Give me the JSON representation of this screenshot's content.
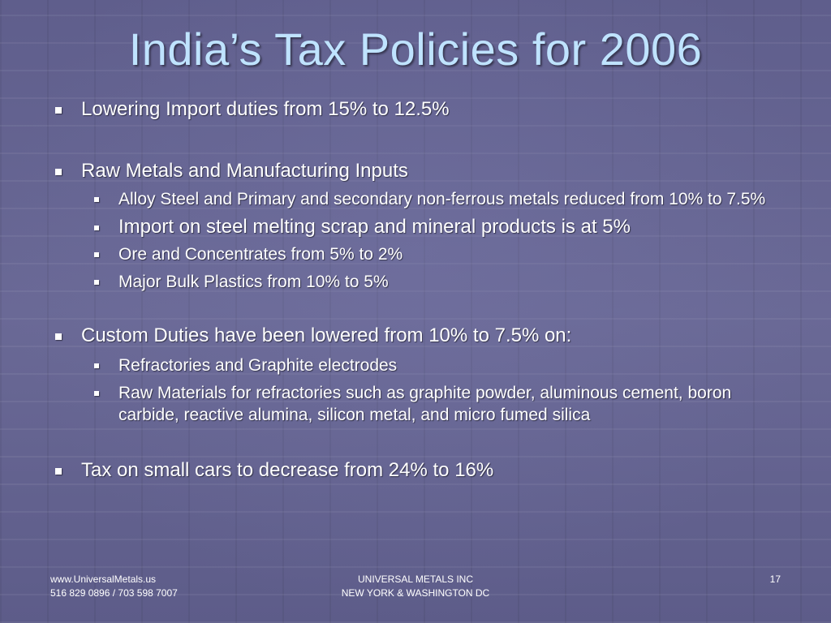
{
  "slide": {
    "title": "India’s Tax Policies for 2006",
    "bullets": [
      {
        "text": "Lowering Import duties from 15% to 12.5%",
        "sub": []
      },
      {
        "text": "Raw Metals and Manufacturing Inputs",
        "sub": [
          "Alloy Steel and Primary and secondary non-ferrous metals reduced from 10% to 7.5%",
          "Import on steel melting scrap  and mineral products is at 5%",
          "Ore and Concentrates from 5% to 2%",
          "Major Bulk Plastics from 10% to 5%"
        ]
      },
      {
        "text": "Custom Duties have been lowered from 10% to 7.5% on:",
        "sub": [
          "Refractories and Graphite electrodes",
          "Raw Materials for refractories such as graphite powder, aluminous cement, boron carbide, reactive alumina, silicon metal, and micro fumed silica"
        ]
      },
      {
        "text": "Tax on small cars to decrease from 24% to 16%",
        "sub": []
      }
    ]
  },
  "footer": {
    "left_line1": "www.UniversalMetals.us",
    "left_line2": "516 829 0896 / 703 598 7007",
    "center_line1": "UNIVERSAL METALS INC",
    "center_line2": "NEW YORK & WASHINGTON DC",
    "page_number": "17"
  },
  "colors": {
    "background": "#63628f",
    "title": "#bfe3ff",
    "text": "#ffffff"
  }
}
